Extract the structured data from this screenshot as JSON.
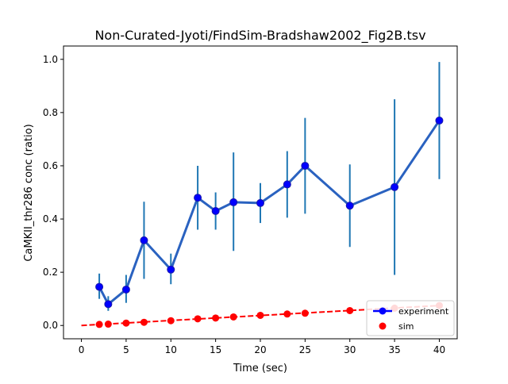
{
  "chart_data": {
    "type": "line",
    "title": "Non-Curated-Jyoti/FindSim-Bradshaw2002_Fig2B.tsv",
    "xlabel": "Time (sec)",
    "ylabel": "CaMKII_thr286 conc (ratio)",
    "xlim": [
      -2,
      42
    ],
    "ylim": [
      -0.05,
      1.05
    ],
    "xticks": [
      0,
      5,
      10,
      15,
      20,
      25,
      30,
      35,
      40
    ],
    "yticks": [
      0.0,
      0.2,
      0.4,
      0.6,
      0.8,
      1.0
    ],
    "xtick_labels": [
      "0",
      "5",
      "10",
      "15",
      "20",
      "25",
      "30",
      "35",
      "40"
    ],
    "ytick_labels": [
      "0.0",
      "0.2",
      "0.4",
      "0.6",
      "0.8",
      "1.0"
    ],
    "grid": false,
    "legend_placement": "lower-right",
    "series": [
      {
        "name": "experiment",
        "style": "line-with-markers-and-errorbars",
        "color": "#0000ff",
        "line_color": "#2a62c0",
        "errorbar_color": "#1f77b4",
        "x": [
          2,
          3,
          5,
          7,
          10,
          13,
          15,
          17,
          20,
          23,
          25,
          30,
          35,
          40
        ],
        "y": [
          0.145,
          0.08,
          0.135,
          0.32,
          0.21,
          0.48,
          0.43,
          0.463,
          0.46,
          0.53,
          0.6,
          0.45,
          0.52,
          0.77
        ],
        "err_low": [
          0.1,
          0.055,
          0.085,
          0.175,
          0.155,
          0.36,
          0.36,
          0.28,
          0.385,
          0.405,
          0.42,
          0.295,
          0.19,
          0.55
        ],
        "err_high": [
          0.195,
          0.11,
          0.19,
          0.465,
          0.27,
          0.6,
          0.5,
          0.65,
          0.535,
          0.655,
          0.78,
          0.605,
          0.85,
          0.99
        ]
      },
      {
        "name": "sim",
        "style": "markers-with-dashed-line",
        "color": "#ff0000",
        "x": [
          2,
          3,
          5,
          7,
          10,
          13,
          15,
          17,
          20,
          23,
          25,
          30,
          35,
          40
        ],
        "y": [
          0.004,
          0.005,
          0.009,
          0.012,
          0.018,
          0.025,
          0.028,
          0.032,
          0.038,
          0.043,
          0.046,
          0.056,
          0.065,
          0.075
        ],
        "line_x": [
          0,
          40
        ],
        "line_y": [
          0.0,
          0.075
        ]
      }
    ]
  }
}
